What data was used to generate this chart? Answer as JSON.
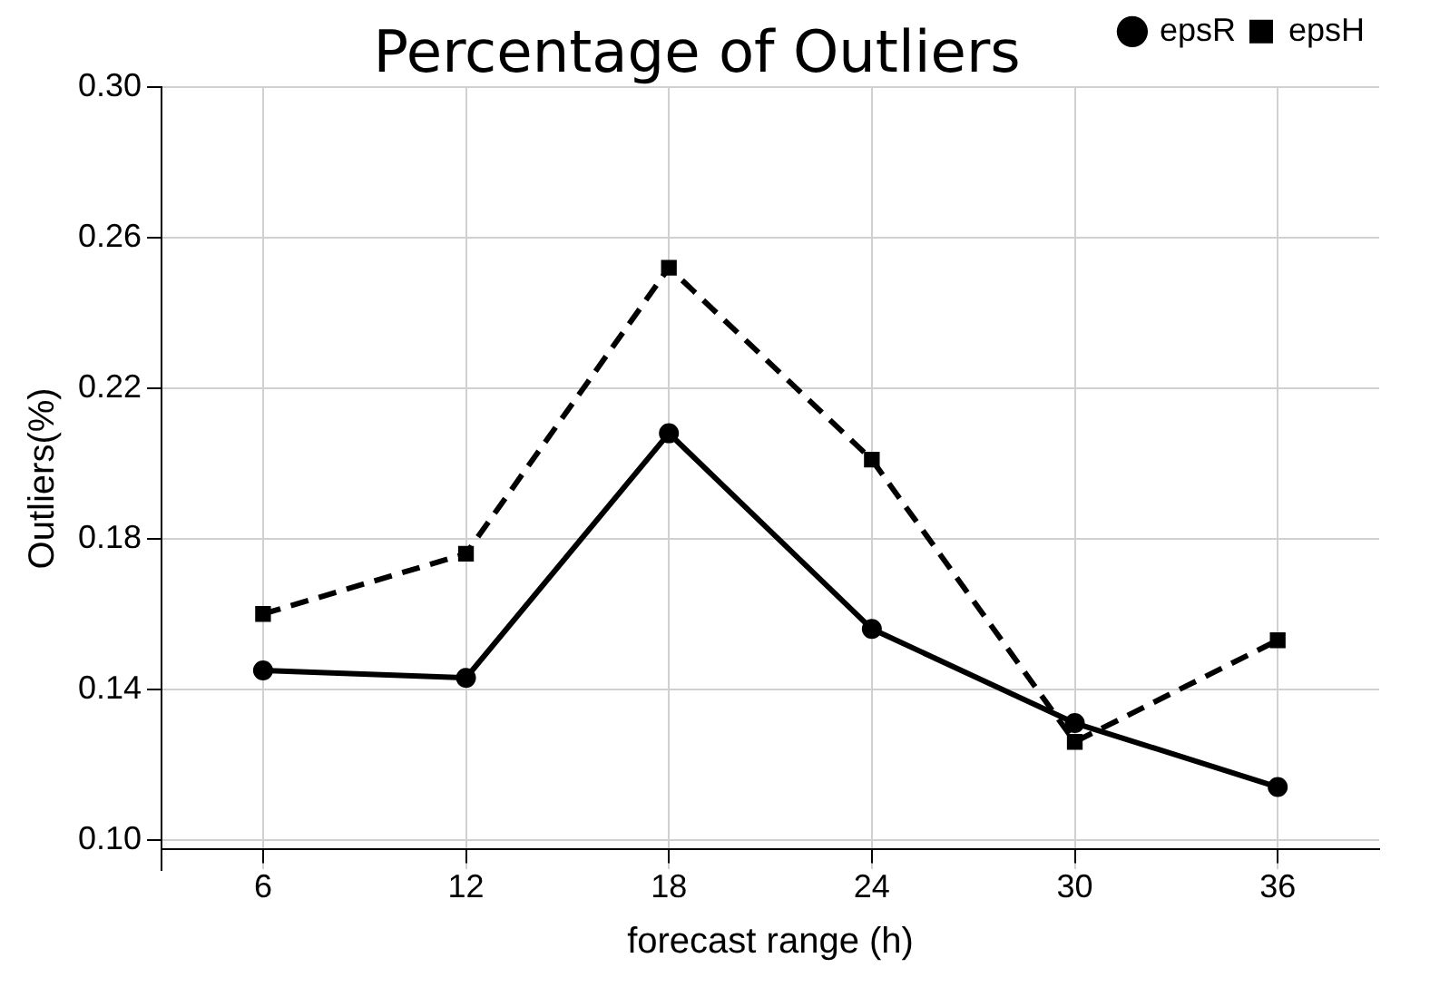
{
  "chart_data": {
    "type": "line",
    "title": "Percentage of Outliers",
    "xlabel": "forecast range (h)",
    "ylabel": "Outliers(%)",
    "categories": [
      "6",
      "12",
      "18",
      "24",
      "30",
      "36"
    ],
    "ylim": [
      0.092,
      0.3
    ],
    "yticks": [
      {
        "value": 0.1,
        "label": "0.10"
      },
      0.14,
      0.18,
      0.22,
      0.26,
      {
        "value": 0.3,
        "label": "0.30"
      }
    ],
    "grid": true,
    "legend": "top right",
    "series": [
      {
        "name": "epsR",
        "color": "#000000",
        "marker": "circle",
        "line_style": "solid",
        "values": [
          0.145,
          0.143,
          0.208,
          0.156,
          0.131,
          0.114
        ]
      },
      {
        "name": "epsH",
        "color": "#000000",
        "marker": "square",
        "line_style": "dashed",
        "values": [
          0.16,
          0.176,
          0.252,
          0.201,
          0.126,
          0.153
        ]
      }
    ]
  }
}
